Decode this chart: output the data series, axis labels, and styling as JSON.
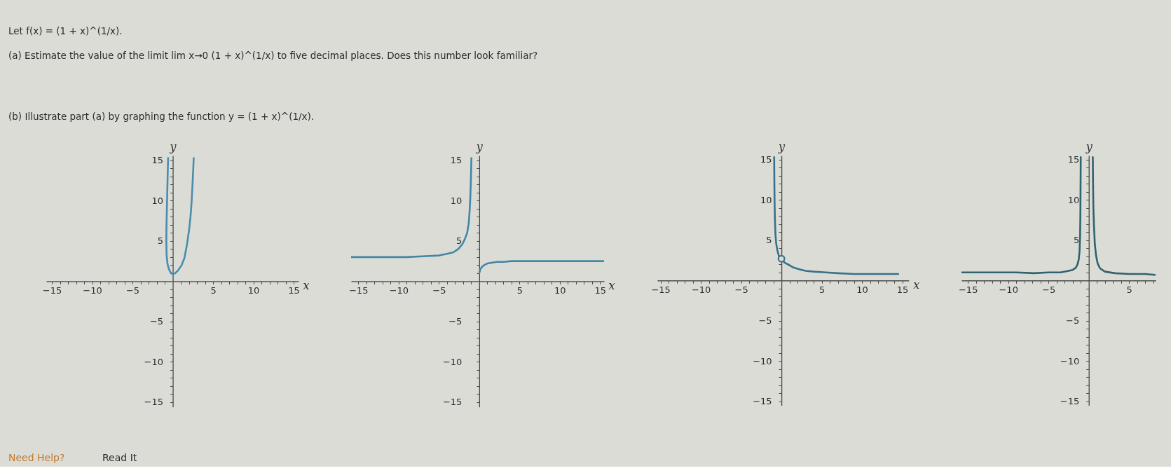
{
  "chart_data": [
    {
      "type": "other",
      "annotations": [
        "Let f(x) = (1 + x)^(1/x).",
        "(a)  Estimate the value of the limit lim x→0 (1 + x)^(1/x) to five decimal places. Does this number look familiar?",
        "(b)  Illustrate part (a) by graphing the function y = (1 + x)^(1/x)."
      ]
    },
    {
      "type": "line",
      "xlabel": "x",
      "ylabel": "y",
      "xlim": [
        -15.7,
        15.6
      ],
      "ylim": [
        -15.6,
        15.6
      ],
      "xticks": [
        -15,
        {
          "value": -14,
          "label": null
        },
        {
          "value": -13,
          "label": null
        },
        {
          "value": -12,
          "label": null
        },
        {
          "value": -11,
          "label": null
        },
        -10,
        {
          "value": -9,
          "label": null
        },
        {
          "value": -8,
          "label": null
        },
        {
          "value": -7,
          "label": null
        },
        {
          "value": -6,
          "label": null
        },
        -5,
        {
          "value": -4,
          "label": null
        },
        {
          "value": -3,
          "label": null
        },
        {
          "value": -2,
          "label": null
        },
        {
          "value": -1,
          "label": null
        },
        {
          "value": 1,
          "label": null
        },
        {
          "value": 2,
          "label": null
        },
        {
          "value": 3,
          "label": null
        },
        {
          "value": 4,
          "label": null
        },
        5,
        {
          "value": 6,
          "label": null
        },
        {
          "value": 7,
          "label": null
        },
        {
          "value": 8,
          "label": null
        },
        {
          "value": 9,
          "label": null
        },
        10,
        {
          "value": 11,
          "label": null
        },
        {
          "value": 12,
          "label": null
        },
        {
          "value": 13,
          "label": null
        },
        {
          "value": 14,
          "label": null
        },
        15
      ],
      "yticks": [
        -15,
        {
          "value": -14,
          "label": null
        },
        {
          "value": -13,
          "label": null
        },
        {
          "value": -12,
          "label": null
        },
        {
          "value": -11,
          "label": null
        },
        -10,
        {
          "value": -9,
          "label": null
        },
        {
          "value": -8,
          "label": null
        },
        {
          "value": -7,
          "label": null
        },
        {
          "value": -6,
          "label": null
        },
        -5,
        {
          "value": -4,
          "label": null
        },
        {
          "value": -3,
          "label": null
        },
        {
          "value": -2,
          "label": null
        },
        {
          "value": -1,
          "label": null
        },
        {
          "value": 1,
          "label": null
        },
        {
          "value": 2,
          "label": null
        },
        {
          "value": 3,
          "label": null
        },
        {
          "value": 4,
          "label": null
        },
        5,
        {
          "value": 6,
          "label": null
        },
        {
          "value": 7,
          "label": null
        },
        {
          "value": 8,
          "label": null
        },
        {
          "value": 9,
          "label": null
        },
        10,
        {
          "value": 11,
          "label": null
        },
        {
          "value": 12,
          "label": null
        },
        {
          "value": 13,
          "label": null
        },
        {
          "value": 14,
          "label": null
        },
        15
      ],
      "series": [
        {
          "color": "#4a8cac",
          "x": [
            -0.58,
            -0.65,
            -0.72,
            -0.78,
            -0.8,
            -0.77,
            -0.66,
            -0.48,
            -0.28,
            -0.05,
            0.3,
            0.7,
            1.1,
            1.45,
            1.75,
            2.03,
            2.2,
            2.32,
            2.45,
            2.6
          ],
          "values": [
            15.3,
            12.5,
            9.5,
            7,
            5,
            3.3,
            2.2,
            1.5,
            1.1,
            0.9,
            1.0,
            1.4,
            2.0,
            2.9,
            4.5,
            6.4,
            8.0,
            9.6,
            12,
            15.3
          ]
        }
      ]
    },
    {
      "type": "line",
      "xlabel": "x",
      "ylabel": "y",
      "xlim": [
        -15.9,
        15.5
      ],
      "ylim": [
        -15.6,
        15.6
      ],
      "xticks": [
        -15,
        {
          "value": -14,
          "label": null
        },
        {
          "value": -13,
          "label": null
        },
        {
          "value": -12,
          "label": null
        },
        {
          "value": -11,
          "label": null
        },
        -10,
        {
          "value": -9,
          "label": null
        },
        {
          "value": -8,
          "label": null
        },
        {
          "value": -7,
          "label": null
        },
        {
          "value": -6,
          "label": null
        },
        -5,
        {
          "value": -4,
          "label": null
        },
        {
          "value": -3,
          "label": null
        },
        {
          "value": -2,
          "label": null
        },
        {
          "value": -1,
          "label": null
        },
        {
          "value": 1,
          "label": null
        },
        {
          "value": 2,
          "label": null
        },
        {
          "value": 3,
          "label": null
        },
        {
          "value": 4,
          "label": null
        },
        5,
        {
          "value": 6,
          "label": null
        },
        {
          "value": 7,
          "label": null
        },
        {
          "value": 8,
          "label": null
        },
        {
          "value": 9,
          "label": null
        },
        10,
        {
          "value": 11,
          "label": null
        },
        {
          "value": 12,
          "label": null
        },
        {
          "value": 13,
          "label": null
        },
        {
          "value": 14,
          "label": null
        },
        15
      ],
      "yticks": [
        -15,
        {
          "value": -14,
          "label": null
        },
        {
          "value": -13,
          "label": null
        },
        {
          "value": -12,
          "label": null
        },
        {
          "value": -11,
          "label": null
        },
        -10,
        {
          "value": -9,
          "label": null
        },
        {
          "value": -8,
          "label": null
        },
        {
          "value": -7,
          "label": null
        },
        {
          "value": -6,
          "label": null
        },
        -5,
        {
          "value": -4,
          "label": null
        },
        {
          "value": -3,
          "label": null
        },
        {
          "value": -2,
          "label": null
        },
        {
          "value": -1,
          "label": null
        },
        {
          "value": 1,
          "label": null
        },
        {
          "value": 2,
          "label": null
        },
        {
          "value": 3,
          "label": null
        },
        {
          "value": 4,
          "label": null
        },
        5,
        {
          "value": 6,
          "label": null
        },
        {
          "value": 7,
          "label": null
        },
        {
          "value": 8,
          "label": null
        },
        {
          "value": 9,
          "label": null
        },
        10,
        {
          "value": 11,
          "label": null
        },
        {
          "value": 12,
          "label": null
        },
        {
          "value": 13,
          "label": null
        },
        {
          "value": 14,
          "label": null
        },
        15
      ],
      "series": [
        {
          "color": "#4286a6",
          "x": [
            -15.9,
            -12,
            -9,
            -7,
            -5,
            -4,
            -3.2,
            -2.6,
            -2.1,
            -1.8,
            -1.5,
            -1.3,
            -1.2,
            -1.1,
            -1.03,
            -0.97
          ],
          "values": [
            3.0,
            3.0,
            3.0,
            3.1,
            3.2,
            3.4,
            3.6,
            4.0,
            4.6,
            5.2,
            6.0,
            7.2,
            8.6,
            10.5,
            12.8,
            15.3
          ]
        },
        {
          "color": "#4286a6",
          "x": [
            0,
            0.15,
            0.35,
            0.6,
            1,
            1.5,
            2.2,
            3,
            4,
            6,
            9,
            12,
            15.4
          ],
          "values": [
            1.0,
            1.5,
            1.8,
            2.0,
            2.2,
            2.3,
            2.4,
            2.4,
            2.5,
            2.5,
            2.5,
            2.5,
            2.5
          ]
        }
      ]
    },
    {
      "type": "line",
      "xlabel": "x",
      "ylabel": "y",
      "xlim": [
        -15.4,
        15.8
      ],
      "ylim": [
        -15.5,
        15.5
      ],
      "xticks": [
        -15,
        {
          "value": -14,
          "label": null
        },
        {
          "value": -13,
          "label": null
        },
        {
          "value": -12,
          "label": null
        },
        {
          "value": -11,
          "label": null
        },
        -10,
        {
          "value": -9,
          "label": null
        },
        {
          "value": -8,
          "label": null
        },
        {
          "value": -7,
          "label": null
        },
        {
          "value": -6,
          "label": null
        },
        -5,
        {
          "value": -4,
          "label": null
        },
        {
          "value": -3,
          "label": null
        },
        {
          "value": -2,
          "label": null
        },
        {
          "value": -1,
          "label": null
        },
        {
          "value": 1,
          "label": null
        },
        {
          "value": 2,
          "label": null
        },
        {
          "value": 3,
          "label": null
        },
        {
          "value": 4,
          "label": null
        },
        5,
        {
          "value": 6,
          "label": null
        },
        {
          "value": 7,
          "label": null
        },
        {
          "value": 8,
          "label": null
        },
        {
          "value": 9,
          "label": null
        },
        10,
        {
          "value": 11,
          "label": null
        },
        {
          "value": 12,
          "label": null
        },
        {
          "value": 13,
          "label": null
        },
        {
          "value": 14,
          "label": null
        },
        15
      ],
      "yticks": [
        -15,
        {
          "value": -14,
          "label": null
        },
        {
          "value": -13,
          "label": null
        },
        {
          "value": -12,
          "label": null
        },
        {
          "value": -11,
          "label": null
        },
        -10,
        {
          "value": -9,
          "label": null
        },
        {
          "value": -8,
          "label": null
        },
        {
          "value": -7,
          "label": null
        },
        {
          "value": -6,
          "label": null
        },
        -5,
        {
          "value": -4,
          "label": null
        },
        {
          "value": -3,
          "label": null
        },
        {
          "value": -2,
          "label": null
        },
        {
          "value": -1,
          "label": null
        },
        {
          "value": 1,
          "label": null
        },
        {
          "value": 2,
          "label": null
        },
        {
          "value": 3,
          "label": null
        },
        {
          "value": 4,
          "label": null
        },
        5,
        {
          "value": 6,
          "label": null
        },
        {
          "value": 7,
          "label": null
        },
        {
          "value": 8,
          "label": null
        },
        {
          "value": 9,
          "label": null
        },
        10,
        {
          "value": 11,
          "label": null
        },
        {
          "value": 12,
          "label": null
        },
        {
          "value": 13,
          "label": null
        },
        {
          "value": 14,
          "label": null
        },
        15
      ],
      "series": [
        {
          "color": "#37728c",
          "x": [
            -0.9,
            -0.88,
            -0.85,
            -0.8,
            -0.74,
            -0.65,
            -0.5,
            -0.33,
            -0.15,
            0.15,
            0.4,
            0.8,
            1.5,
            2.2,
            3,
            4,
            5.5,
            7,
            9,
            11,
            13,
            14.5
          ],
          "values": [
            15.3,
            12.5,
            9.6,
            7.3,
            5.7,
            4.6,
            3.7,
            3.1,
            2.8,
            2.5,
            2.2,
            2.0,
            1.6,
            1.4,
            1.2,
            1.1,
            1.0,
            0.9,
            0.8,
            0.8,
            0.8,
            0.8
          ]
        },
        {
          "type": "scatter",
          "marker": "circle",
          "color": "#37728c",
          "x": [
            0
          ],
          "values": [
            2.7
          ]
        }
      ]
    },
    {
      "type": "line",
      "ylabel": "y",
      "xlim": [
        -15.8,
        8.3
      ],
      "ylim": [
        -15.5,
        15.5
      ],
      "xticks": [
        -15,
        {
          "value": -14,
          "label": null
        },
        {
          "value": -13,
          "label": null
        },
        {
          "value": -12,
          "label": null
        },
        {
          "value": -11,
          "label": null
        },
        -10,
        {
          "value": -9,
          "label": null
        },
        {
          "value": -8,
          "label": null
        },
        {
          "value": -7,
          "label": null
        },
        {
          "value": -6,
          "label": null
        },
        -5,
        {
          "value": -4,
          "label": null
        },
        {
          "value": -3,
          "label": null
        },
        {
          "value": -2,
          "label": null
        },
        {
          "value": -1,
          "label": null
        },
        {
          "value": 1,
          "label": null
        },
        {
          "value": 2,
          "label": null
        },
        {
          "value": 3,
          "label": null
        },
        {
          "value": 4,
          "label": null
        },
        5,
        {
          "value": 6,
          "label": null
        },
        {
          "value": 7,
          "label": null
        },
        {
          "value": 8,
          "label": null
        }
      ],
      "yticks": [
        -15,
        {
          "value": -14,
          "label": null
        },
        {
          "value": -13,
          "label": null
        },
        {
          "value": -12,
          "label": null
        },
        {
          "value": -11,
          "label": null
        },
        -10,
        {
          "value": -9,
          "label": null
        },
        {
          "value": -8,
          "label": null
        },
        {
          "value": -7,
          "label": null
        },
        {
          "value": -6,
          "label": null
        },
        -5,
        {
          "value": -4,
          "label": null
        },
        {
          "value": -3,
          "label": null
        },
        {
          "value": -2,
          "label": null
        },
        {
          "value": -1,
          "label": null
        },
        {
          "value": 1,
          "label": null
        },
        {
          "value": 2,
          "label": null
        },
        {
          "value": 3,
          "label": null
        },
        {
          "value": 4,
          "label": null
        },
        5,
        {
          "value": 6,
          "label": null
        },
        {
          "value": 7,
          "label": null
        },
        {
          "value": 8,
          "label": null
        },
        {
          "value": 9,
          "label": null
        },
        10,
        {
          "value": 11,
          "label": null
        },
        {
          "value": 12,
          "label": null
        },
        {
          "value": 13,
          "label": null
        },
        {
          "value": 14,
          "label": null
        },
        15
      ],
      "series": [
        {
          "color": "#30626f",
          "x": [
            -15.8,
            -12,
            -9,
            -6.8,
            -5,
            -3.5,
            -2.5,
            -2.0,
            -1.6,
            -1.4,
            -1.25,
            -1.15,
            -1.08,
            -1.04,
            -1.0
          ],
          "values": [
            1.0,
            1.0,
            1.0,
            0.9,
            1.0,
            1.0,
            1.2,
            1.3,
            1.6,
            2.0,
            2.6,
            3.6,
            5.5,
            8.5,
            15.3
          ]
        },
        {
          "color": "#30626f",
          "x": [
            0.5,
            0.53,
            0.57,
            0.64,
            0.75,
            0.9,
            1.1,
            1.4,
            2,
            3.25,
            5,
            7,
            8.2
          ],
          "values": [
            15.3,
            12,
            9,
            6.8,
            4.5,
            3.1,
            2.1,
            1.5,
            1.1,
            0.9,
            0.8,
            0.8,
            0.7
          ]
        }
      ]
    },
    {
      "type": "other",
      "annotations": [
        "Need Help?",
        "Read It"
      ]
    }
  ]
}
